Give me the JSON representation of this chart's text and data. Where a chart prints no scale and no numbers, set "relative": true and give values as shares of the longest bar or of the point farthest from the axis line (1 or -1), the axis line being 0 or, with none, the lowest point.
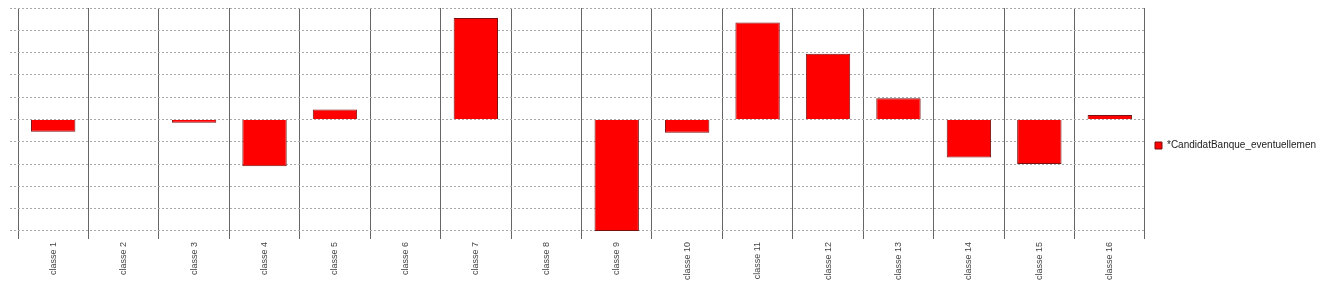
{
  "chart_data": {
    "type": "bar",
    "relative": true,
    "grid": true,
    "legend": "right",
    "categories": [
      "classe 1",
      "classe 2",
      "classe 3",
      "classe 4",
      "classe 5",
      "classe 6",
      "classe 7",
      "classe 8",
      "classe 9",
      "classe 10",
      "classe 11",
      "classe 12",
      "classe 13",
      "classe 14",
      "classe 15",
      "classe 16"
    ],
    "series": [
      {
        "name": "*CandidatBanque_eventuellemen",
        "color": "#ff0000",
        "values": [
          -0.11,
          0,
          -0.03,
          -0.42,
          0.09,
          0,
          0.91,
          0,
          -1,
          -0.12,
          0.87,
          0.59,
          0.19,
          -0.34,
          -0.4,
          0.04
        ]
      }
    ]
  }
}
